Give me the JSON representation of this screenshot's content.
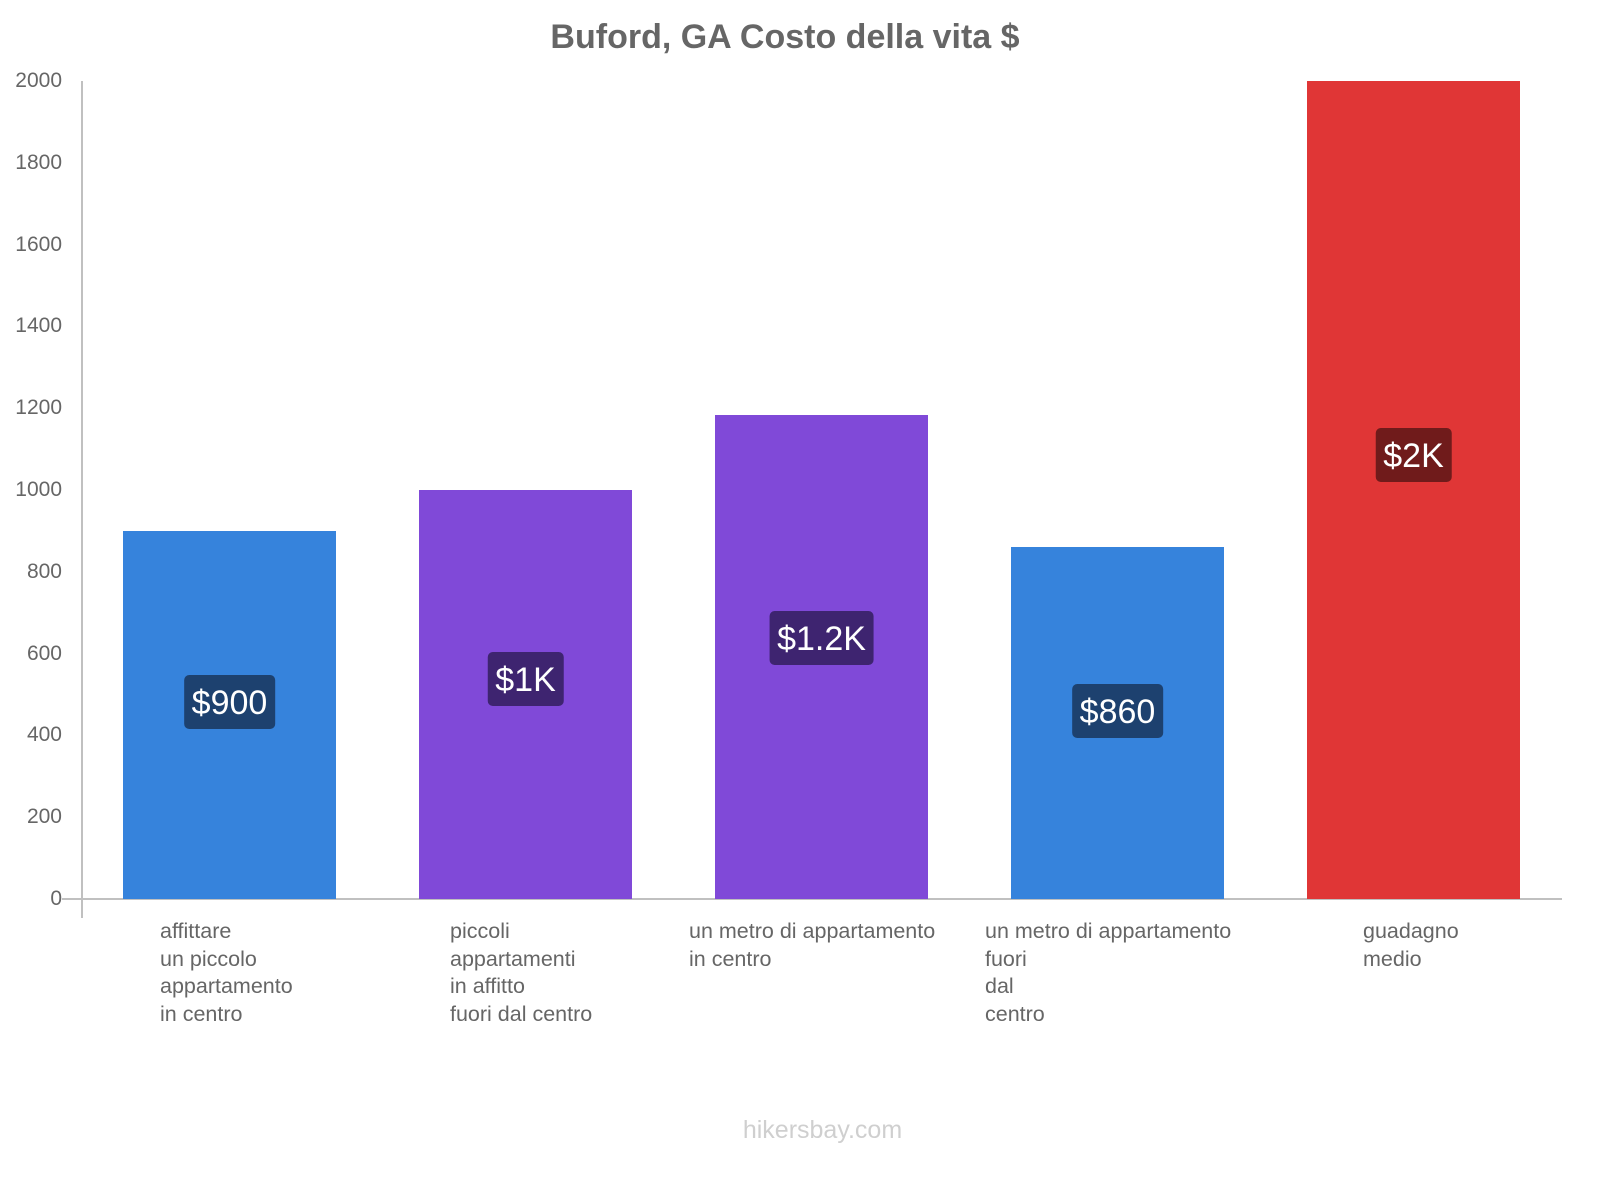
{
  "chart_data": {
    "type": "bar",
    "title": "Buford, GA Costo della vita $",
    "xlabel": "",
    "ylabel": "",
    "ylim": [
      0,
      2000
    ],
    "yticks": [
      0,
      200,
      400,
      600,
      800,
      1000,
      1200,
      1400,
      1600,
      1800,
      2000
    ],
    "grid": false,
    "legend": null,
    "categories": [
      "affittare un piccolo appartamento in centro",
      "piccoli appartamenti in affitto fuori dal centro",
      "un metro di appartamento in centro",
      "un metro di appartamento fuori dal centro",
      "guadagno medio"
    ],
    "values": [
      900,
      1000,
      1183,
      860,
      2000
    ],
    "data_labels": [
      "$900",
      "$1K",
      "$1.2K",
      "$860",
      "$2K"
    ],
    "colors": [
      "#3683dc",
      "#8049d8",
      "#8049d8",
      "#3683dc",
      "#e03636"
    ],
    "label_bg_colors": [
      "#1d416f",
      "#3e2470",
      "#3e2470",
      "#1d416f",
      "#701b1b"
    ]
  },
  "header": {
    "title": "Buford, GA Costo della vita $"
  },
  "axis": {
    "y_ticks": [
      "0",
      "200",
      "400",
      "600",
      "800",
      "1000",
      "1200",
      "1400",
      "1600",
      "1800",
      "2000"
    ]
  },
  "bars": [
    {
      "label_lines": "affittare\nun piccolo\nappartamento\nin centro",
      "value_label": "$900"
    },
    {
      "label_lines": "piccoli\nappartamenti\nin affitto\nfuori dal centro",
      "value_label": "$1K"
    },
    {
      "label_lines": "un metro di appartamento\nin centro",
      "value_label": "$1.2K"
    },
    {
      "label_lines": "un metro di appartamento\nfuori\ndal\ncentro",
      "value_label": "$860"
    },
    {
      "label_lines": "guadagno\nmedio",
      "value_label": "$2K"
    }
  ],
  "footer": {
    "watermark": "hikersbay.com"
  }
}
